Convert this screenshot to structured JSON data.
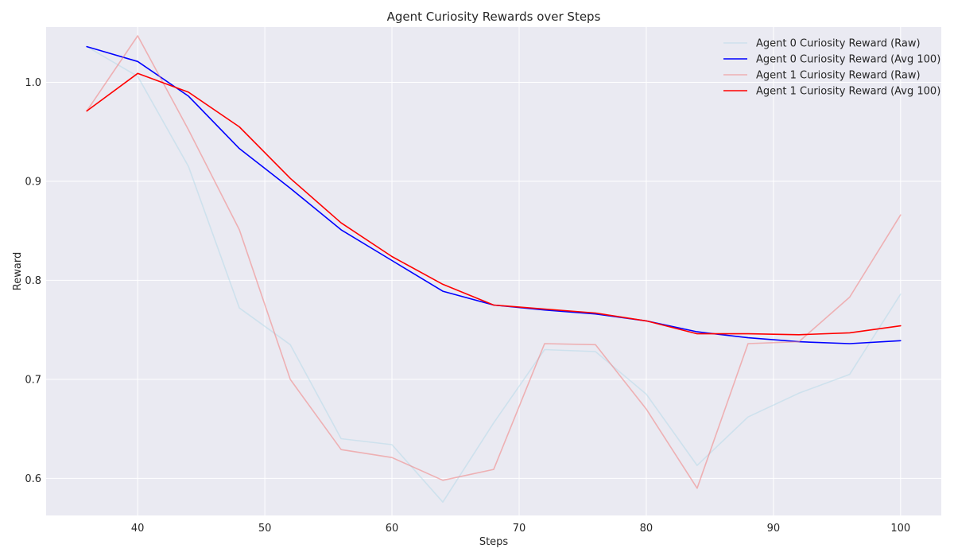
{
  "chart_data": {
    "type": "line",
    "title": "Agent Curiosity Rewards over Steps",
    "xlabel": "Steps",
    "ylabel": "Reward",
    "xlim": [
      32.8,
      103.2
    ],
    "ylim": [
      0.5625,
      1.0558
    ],
    "x_ticks": [
      40,
      50,
      60,
      70,
      80,
      90,
      100
    ],
    "y_ticks": [
      0.6,
      0.7,
      0.8,
      0.9,
      1.0
    ],
    "grid": true,
    "legend_position": "top-right",
    "x": [
      36,
      40,
      44,
      48,
      52,
      56,
      60,
      64,
      68,
      72,
      76,
      80,
      84,
      88,
      92,
      96,
      100
    ],
    "series": [
      {
        "name": "Agent 0 Curiosity Reward (Raw)",
        "color": "#add8e6",
        "opacity": 0.45,
        "values": [
          1.036,
          1.006,
          0.915,
          0.772,
          0.735,
          0.64,
          0.634,
          0.576,
          0.656,
          0.73,
          0.728,
          0.685,
          0.613,
          0.662,
          0.686,
          0.705,
          0.786
        ]
      },
      {
        "name": "Agent 0 Curiosity Reward (Avg 100)",
        "color": "#0000ff",
        "opacity": 1,
        "values": [
          1.036,
          1.021,
          0.986,
          0.933,
          0.893,
          0.851,
          0.82,
          0.789,
          0.775,
          0.77,
          0.766,
          0.759,
          0.748,
          0.742,
          0.738,
          0.736,
          0.739
        ]
      },
      {
        "name": "Agent 1 Curiosity Reward (Raw)",
        "color": "#f08080",
        "opacity": 0.55,
        "values": [
          0.971,
          1.047,
          0.952,
          0.851,
          0.7,
          0.629,
          0.621,
          0.598,
          0.609,
          0.736,
          0.735,
          0.67,
          0.59,
          0.736,
          0.738,
          0.783,
          0.866
        ]
      },
      {
        "name": "Agent 1 Curiosity Reward (Avg 100)",
        "color": "#ff0000",
        "opacity": 1,
        "values": [
          0.971,
          1.009,
          0.99,
          0.955,
          0.903,
          0.858,
          0.824,
          0.796,
          0.775,
          0.771,
          0.767,
          0.759,
          0.746,
          0.746,
          0.745,
          0.747,
          0.754
        ]
      }
    ]
  }
}
